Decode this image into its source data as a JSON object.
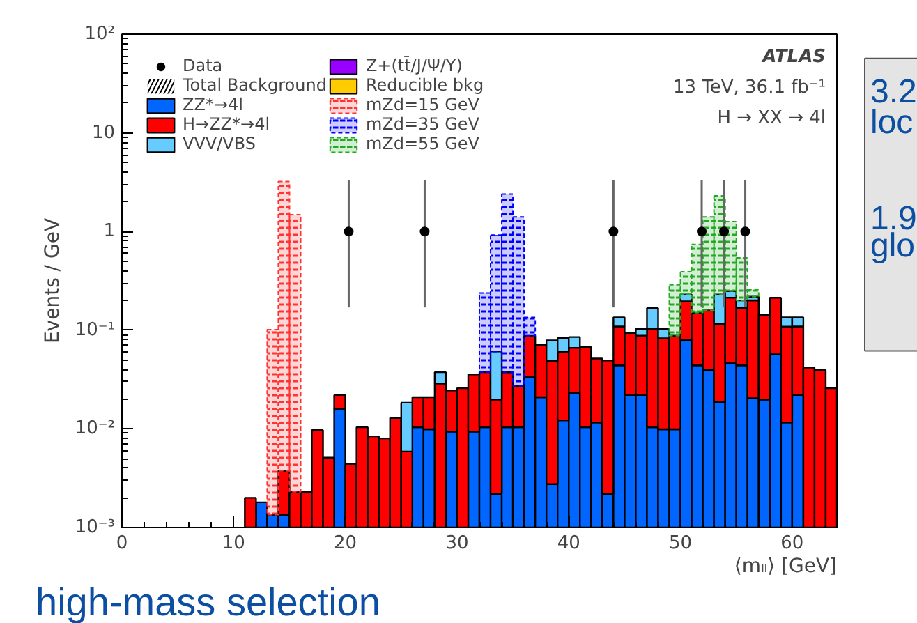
{
  "chart_data": {
    "type": "bar",
    "ylabel": "Events / GeV",
    "xlabel": "⟨mₗₗ⟩ [GeV]",
    "x": [
      11.5,
      12.5,
      13.5,
      14.5,
      15.5,
      16.5,
      17.5,
      18.5,
      19.5,
      20.5,
      21.5,
      22.5,
      23.5,
      24.5,
      25.5,
      26.5,
      27.5,
      28.5,
      29.5,
      30.5,
      31.5,
      32.5,
      33.5,
      34.5,
      35.5,
      36.5,
      37.5,
      38.5,
      39.5,
      40.5,
      41.5,
      42.5,
      43.5,
      44.5,
      45.5,
      46.5,
      47.5,
      48.5,
      49.5,
      50.5,
      51.5,
      52.5,
      53.5,
      54.5,
      55.5,
      56.5,
      57.5,
      58.5,
      59.5,
      60.5,
      61.5,
      62.5,
      63.5
    ],
    "stacked": true,
    "log": true,
    "grid": false,
    "legend": "top left",
    "xlim": [
      0,
      64
    ],
    "xticks": [
      0,
      10,
      20,
      30,
      40,
      50,
      60
    ],
    "ylim": [
      0.001,
      100
    ],
    "yticks": [
      {
        "value": 0.001,
        "label": "10⁻³"
      },
      {
        "value": 0.01,
        "label": "10⁻²"
      },
      {
        "value": 0.1,
        "label": "10⁻¹"
      },
      1,
      10,
      {
        "value": 100,
        "label": "10²"
      }
    ],
    "series": [
      {
        "name": "Data",
        "type": "scatter",
        "color": "#000000",
        "marker": "circle",
        "x": [
          20.3,
          27.1,
          44.0,
          51.9,
          53.9,
          55.8
        ],
        "values": [
          1,
          1,
          1,
          1,
          1,
          1
        ],
        "errors": [
          [
            0.17,
            3.3
          ],
          [
            0.17,
            3.3
          ],
          [
            0.17,
            3.3
          ],
          [
            0.17,
            3.3
          ],
          [
            0.17,
            3.3
          ],
          [
            0.17,
            3.3
          ]
        ]
      },
      {
        "name": "Total Background",
        "type": "area",
        "color": "#000000",
        "values": [
          null,
          null,
          null,
          null,
          null,
          null,
          null,
          null,
          null,
          null,
          null,
          null,
          null,
          null,
          null,
          null,
          null,
          null,
          null,
          null,
          null,
          null,
          null,
          null,
          null,
          null,
          null,
          null,
          null,
          null,
          null,
          null,
          null,
          null,
          null,
          null,
          null,
          null,
          null,
          null,
          null,
          null,
          null,
          null,
          null,
          null,
          null,
          null,
          null,
          null,
          null,
          null,
          null
        ]
      },
      {
        "name": "ZZ*→4l",
        "color": "#0066ff",
        "values": [
          null,
          0.0018,
          0.00135,
          0.00135,
          null,
          null,
          null,
          null,
          0.016,
          null,
          null,
          null,
          null,
          null,
          null,
          0.0104,
          0.0099,
          null,
          0.0094,
          null,
          0.0094,
          0.0104,
          0.0022,
          0.0104,
          0.0104,
          0.0337,
          0.0209,
          0.00275,
          0.0122,
          0.0232,
          0.0104,
          0.0116,
          0.0022,
          0.044,
          0.022,
          0.022,
          0.0104,
          0.0099,
          0.0099,
          0.079,
          0.044,
          0.0395,
          0.0188,
          0.0465,
          0.044,
          0.0204,
          0.0198,
          0.057,
          0.0116,
          0.022,
          null,
          null,
          null
        ]
      },
      {
        "name": "H→ZZ*→4l",
        "color": "#ff0000",
        "values": [
          0.002,
          null,
          null,
          0.0024,
          0.0023,
          0.0023,
          0.0097,
          0.0051,
          0.006,
          0.0044,
          0.0104,
          0.0084,
          0.008,
          0.0129,
          0.0059,
          0.0105,
          0.011,
          0.0288,
          0.0151,
          0.0258,
          0.0262,
          0.0271,
          0.0176,
          0.027,
          0.0168,
          0.054,
          0.05,
          0.046,
          0.048,
          0.043,
          0.057,
          0.04,
          0.047,
          0.065,
          0.071,
          0.066,
          0.093,
          0.073,
          0.078,
          0.117,
          0.106,
          0.119,
          0.096,
          0.167,
          0.123,
          0.18,
          0.122,
          0.156,
          0.097,
          0.087,
          0.0417,
          0.0395,
          0.0258
        ]
      },
      {
        "name": "VVV/VBS",
        "color": "#66ccff",
        "values": [
          null,
          null,
          null,
          null,
          null,
          null,
          null,
          null,
          null,
          null,
          null,
          null,
          null,
          null,
          0.0125,
          null,
          null,
          0.0087,
          null,
          null,
          null,
          null,
          0.041,
          null,
          null,
          null,
          null,
          0.03,
          0.023,
          0.019,
          null,
          null,
          null,
          0.026,
          null,
          0.015,
          0.064,
          0.02,
          null,
          0.034,
          null,
          null,
          0.115,
          0.035,
          0.033,
          0.018,
          null,
          null,
          0.026,
          0.026,
          null,
          null,
          null
        ]
      },
      {
        "name": "Z+(tt̄/J/Ψ/Υ)",
        "color": "#9900ff",
        "values": [
          null,
          null,
          null,
          null,
          null,
          null,
          null,
          null,
          null,
          null,
          null,
          null,
          null,
          null,
          null,
          null,
          null,
          null,
          null,
          null,
          null,
          null,
          null,
          null,
          null,
          null,
          null,
          null,
          null,
          null,
          null,
          null,
          null,
          null,
          null,
          null,
          null,
          null,
          null,
          null,
          null,
          null,
          null,
          null,
          null,
          null,
          null,
          null,
          null,
          null,
          null,
          null,
          null
        ]
      },
      {
        "name": "Reducible bkg",
        "color": "#ffcc00",
        "values": [
          null,
          null,
          null,
          null,
          null,
          null,
          null,
          null,
          null,
          null,
          null,
          null,
          null,
          null,
          null,
          null,
          null,
          null,
          null,
          null,
          null,
          null,
          null,
          null,
          null,
          null,
          null,
          null,
          null,
          null,
          null,
          null,
          null,
          null,
          null,
          null,
          null,
          null,
          null,
          null,
          null,
          null,
          null,
          null,
          null,
          null,
          null,
          null,
          null,
          null,
          null,
          null,
          null
        ]
      },
      {
        "name": "mZd=15 GeV",
        "color": "#ff3333",
        "line_style": "dashed",
        "values": [
          null,
          null,
          0.1,
          3.2,
          1.48,
          null,
          null,
          null,
          null,
          null,
          null,
          null,
          null,
          null,
          null,
          null,
          null,
          null,
          null,
          null,
          null,
          null,
          null,
          null,
          null,
          null,
          null,
          null,
          null,
          null,
          null,
          null,
          null,
          null,
          null,
          null,
          null,
          null,
          null,
          null,
          null,
          null,
          null,
          null,
          null,
          null,
          null,
          null,
          null,
          null,
          null,
          null,
          null
        ]
      },
      {
        "name": "mZd=35 GeV",
        "color": "#0000ff",
        "line_style": "dashed",
        "values": [
          null,
          null,
          null,
          null,
          null,
          null,
          null,
          null,
          null,
          null,
          null,
          null,
          null,
          null,
          null,
          null,
          null,
          null,
          null,
          null,
          null,
          0.2,
          0.86,
          2.36,
          1.38,
          0.047,
          null,
          null,
          null,
          null,
          null,
          null,
          null,
          null,
          null,
          null,
          null,
          null,
          null,
          null,
          null,
          null,
          null,
          null,
          null,
          null,
          null,
          null,
          null,
          null,
          null,
          null,
          null
        ]
      },
      {
        "name": "mZd=55 GeV",
        "color": "#22aa22",
        "line_style": "dashed",
        "values": [
          null,
          null,
          null,
          null,
          null,
          null,
          null,
          null,
          null,
          null,
          null,
          null,
          null,
          null,
          null,
          null,
          null,
          null,
          null,
          null,
          null,
          null,
          null,
          null,
          null,
          null,
          null,
          null,
          null,
          null,
          null,
          null,
          null,
          null,
          null,
          null,
          null,
          null,
          0.2,
          0.16,
          0.59,
          1.25,
          2.07,
          1.01,
          0.34,
          0.04,
          null,
          null,
          null,
          null,
          null,
          null,
          null
        ]
      }
    ],
    "annotations": [
      "ATLAS",
      "13 TeV, 36.1 fb⁻¹",
      "H → XX → 4l",
      "high-mass selection",
      "3.2",
      "loc",
      "1.9",
      "glo"
    ]
  }
}
